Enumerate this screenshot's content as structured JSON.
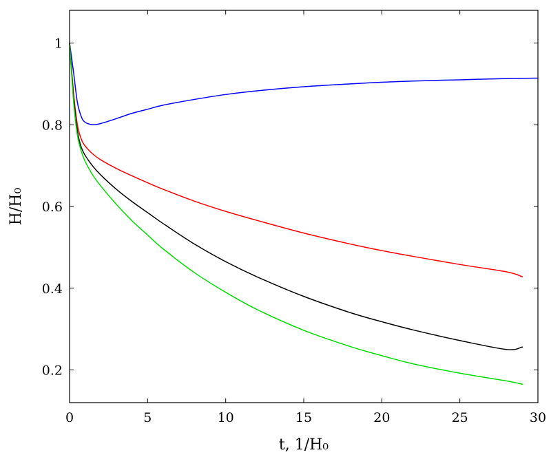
{
  "chart_data": {
    "type": "line",
    "title": "",
    "xlabel": "t, 1/H₀",
    "ylabel": "H/H₀",
    "xlim": [
      0,
      30
    ],
    "ylim": [
      0.12,
      1.08
    ],
    "xticks": [
      0,
      5,
      10,
      15,
      20,
      25,
      30
    ],
    "xtick_labels": [
      "0",
      "5",
      "10",
      "15",
      "20",
      "25",
      "30"
    ],
    "yticks": [
      0.2,
      0.4,
      0.6,
      0.8,
      1.0
    ],
    "ytick_labels": [
      "0.2",
      "0.4",
      "0.6",
      "0.8",
      "1"
    ],
    "grid": false,
    "legend": "none",
    "series": [
      {
        "color": "#0000ff",
        "x": [
          0,
          0.25,
          0.5,
          0.75,
          1,
          1.5,
          2,
          3,
          4,
          5,
          6,
          8,
          10,
          12,
          15,
          18,
          20,
          22,
          25,
          28,
          30
        ],
        "y": [
          1.0,
          0.93,
          0.855,
          0.82,
          0.806,
          0.8,
          0.803,
          0.815,
          0.828,
          0.838,
          0.848,
          0.862,
          0.874,
          0.883,
          0.893,
          0.9,
          0.904,
          0.907,
          0.91,
          0.913,
          0.914
        ]
      },
      {
        "color": "#ff0000",
        "x": [
          0,
          0.25,
          0.5,
          0.75,
          1,
          1.5,
          2,
          3,
          4,
          5,
          6,
          8,
          10,
          12,
          15,
          18,
          20,
          22,
          25,
          28,
          29
        ],
        "y": [
          1.0,
          0.88,
          0.8,
          0.765,
          0.748,
          0.728,
          0.714,
          0.693,
          0.675,
          0.658,
          0.642,
          0.613,
          0.588,
          0.566,
          0.535,
          0.508,
          0.492,
          0.478,
          0.458,
          0.44,
          0.428
        ]
      },
      {
        "color": "#000000",
        "x": [
          0,
          0.25,
          0.5,
          0.75,
          1,
          1.5,
          2,
          3,
          4,
          5,
          6,
          8,
          10,
          12,
          15,
          18,
          20,
          22,
          25,
          28,
          29
        ],
        "y": [
          1.0,
          0.87,
          0.785,
          0.745,
          0.725,
          0.698,
          0.677,
          0.642,
          0.612,
          0.585,
          0.558,
          0.508,
          0.465,
          0.428,
          0.38,
          0.34,
          0.318,
          0.298,
          0.272,
          0.25,
          0.256
        ]
      },
      {
        "color": "#00dd00",
        "x": [
          0,
          0.25,
          0.5,
          0.75,
          1,
          1.5,
          2,
          3,
          4,
          5,
          6,
          8,
          10,
          12,
          15,
          18,
          20,
          22,
          25,
          28,
          29
        ],
        "y": [
          1.0,
          0.86,
          0.775,
          0.735,
          0.71,
          0.676,
          0.65,
          0.605,
          0.565,
          0.53,
          0.496,
          0.438,
          0.39,
          0.348,
          0.297,
          0.257,
          0.235,
          0.215,
          0.192,
          0.173,
          0.165
        ]
      }
    ]
  }
}
